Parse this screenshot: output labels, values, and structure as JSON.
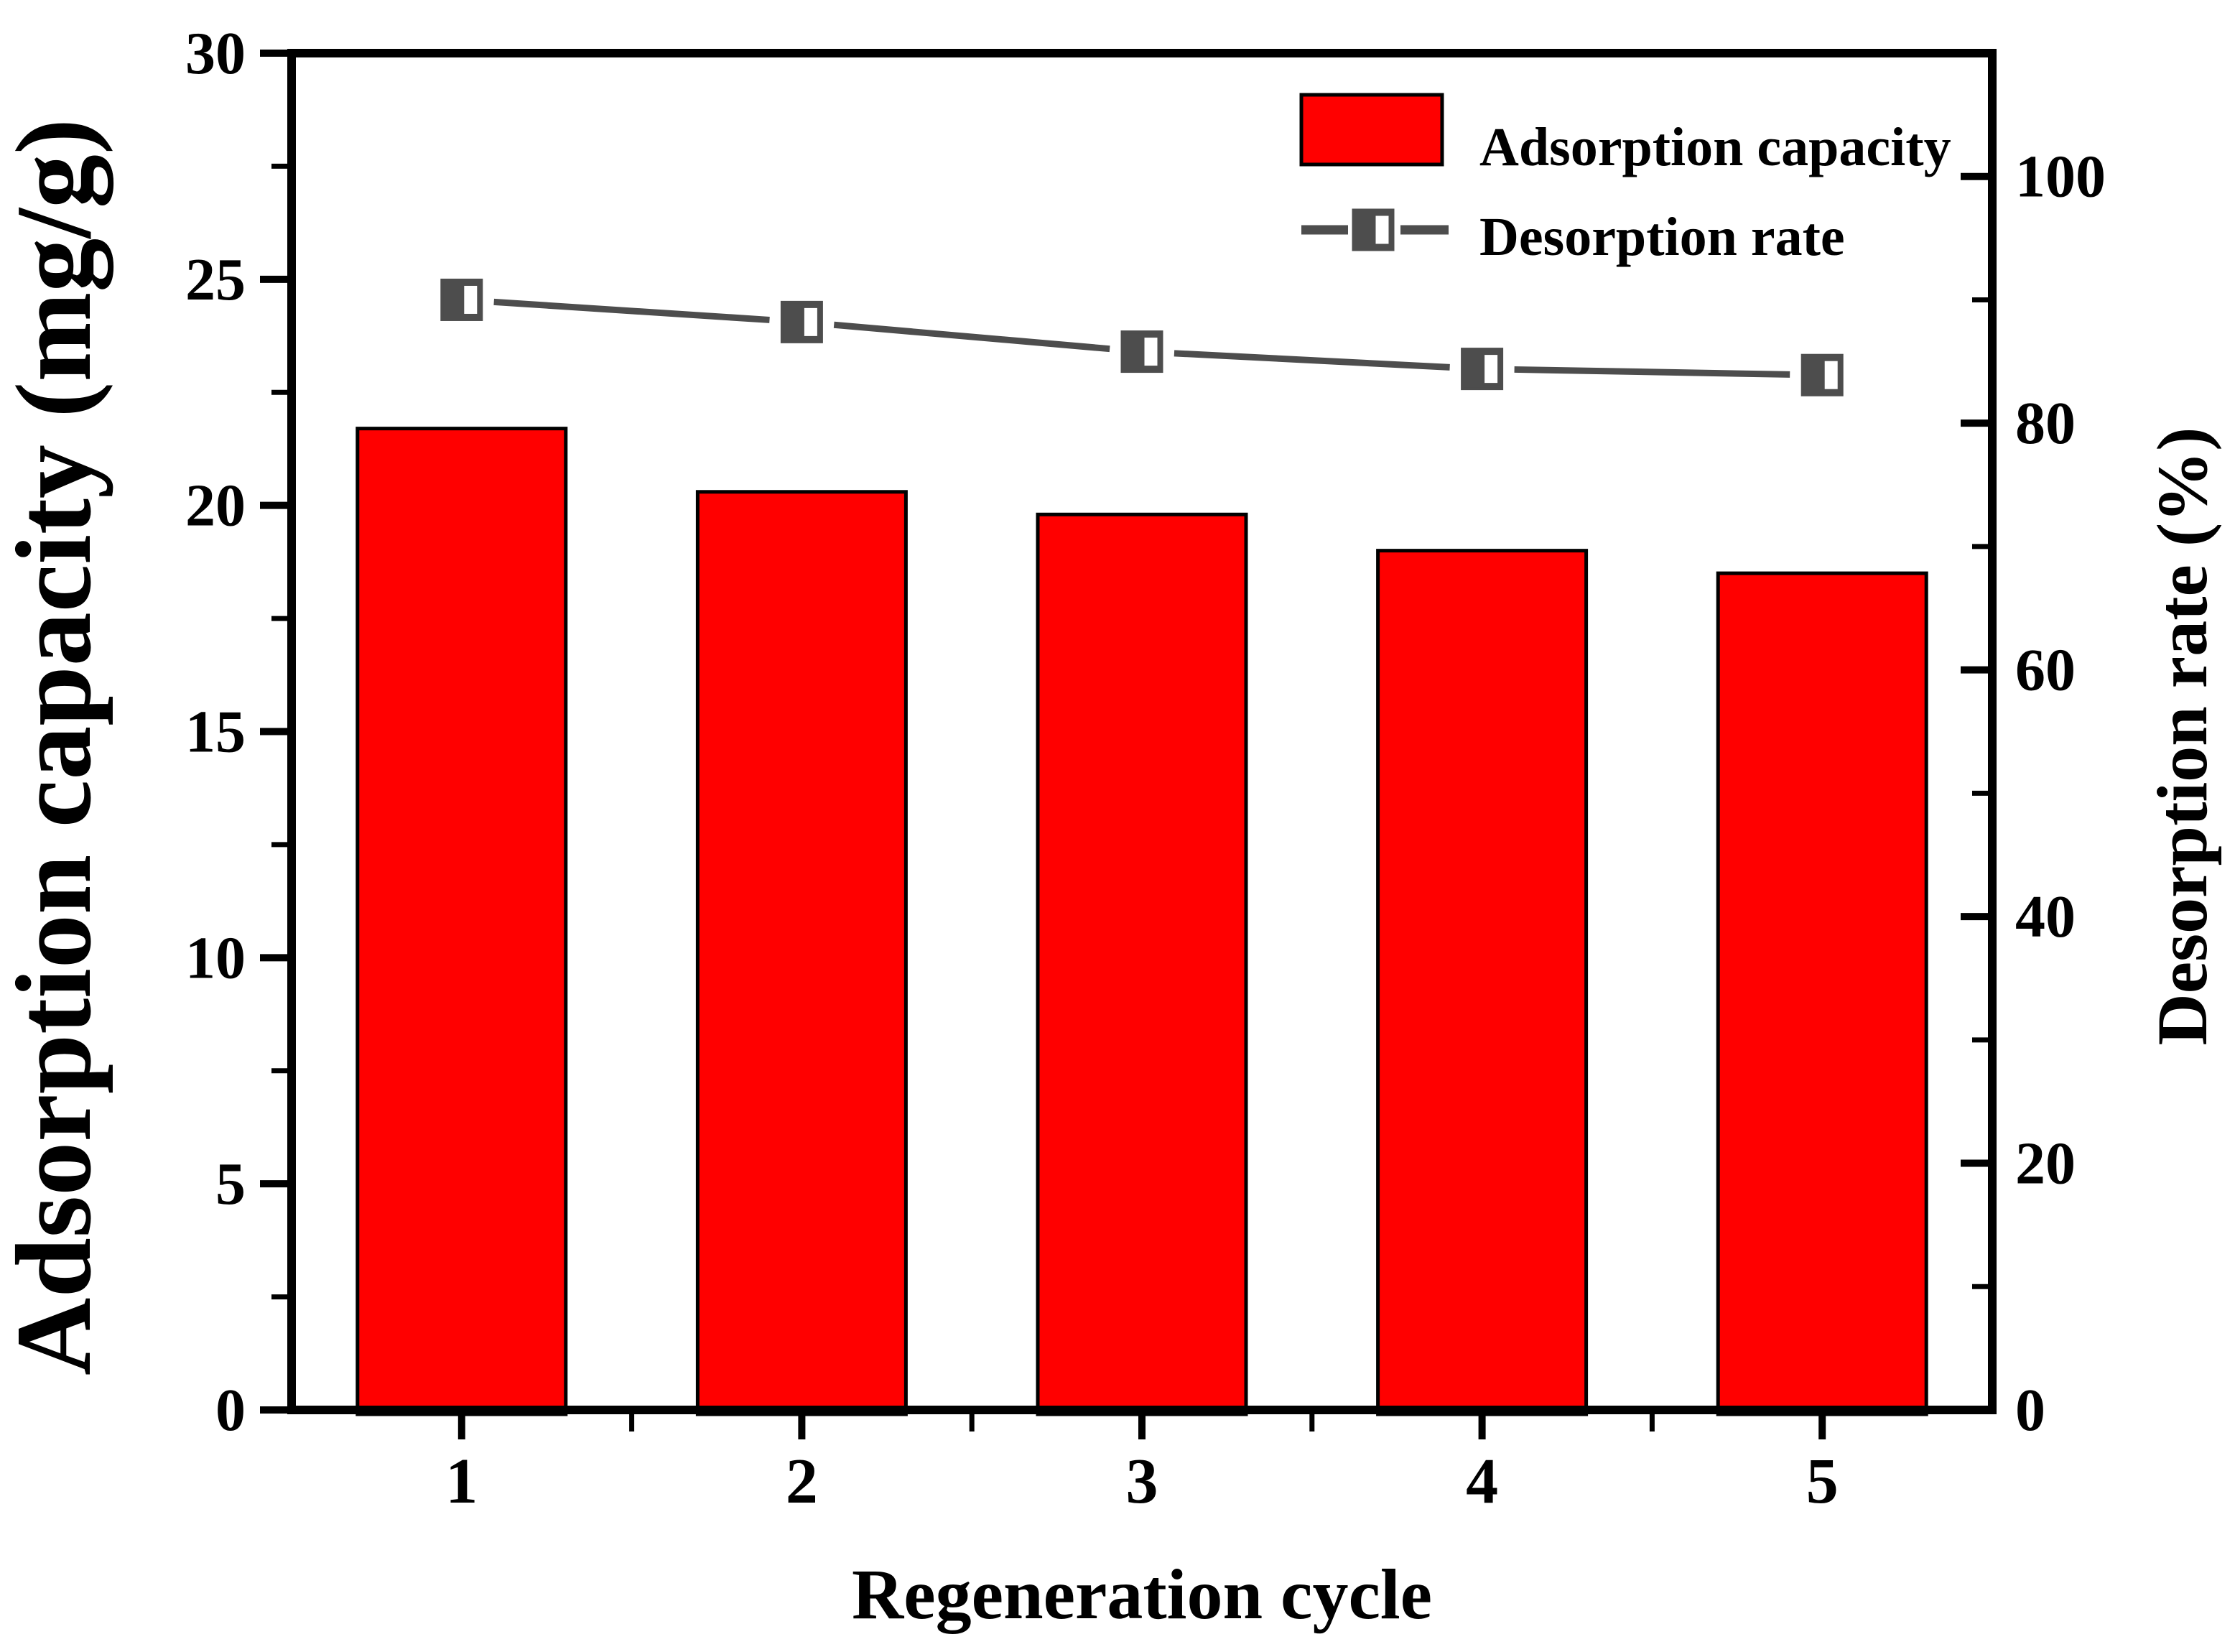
{
  "chart_data": {
    "type": "combo-bar-line",
    "categories": [
      "1",
      "2",
      "3",
      "4",
      "5"
    ],
    "xlabel": "Regeneration cycle",
    "left_axis": {
      "label": "Adsorption capacity (mg/g)",
      "min": 0,
      "max": 30,
      "major_step": 5,
      "minor_step": 2.5,
      "major_tick_labels": [
        "0",
        "5",
        "10",
        "15",
        "20",
        "25",
        "30"
      ],
      "ticks_direction": "out"
    },
    "right_axis": {
      "label": "Desorption rate (%)",
      "min": 0,
      "max": 110,
      "major_step": 20,
      "minor_step": 10,
      "major_tick_labels": [
        "0",
        "20",
        "40",
        "60",
        "80",
        "100"
      ],
      "ticks_direction": "in"
    },
    "series": [
      {
        "name": "Adsorption capacity",
        "type": "bar",
        "axis": "left",
        "color": "#ff0000",
        "border_color": "#000000",
        "values": [
          21.7,
          20.3,
          19.8,
          19.0,
          18.5
        ]
      },
      {
        "name": "Desorption rate",
        "type": "line",
        "axis": "right",
        "color": "#4d4d4d",
        "marker": "half-filled-square",
        "values": [
          90.0,
          88.2,
          85.8,
          84.4,
          83.9
        ]
      }
    ],
    "legend": {
      "position": "top-right-inside",
      "entries": [
        {
          "label": "Adsorption capacity",
          "symbol": "red-rectangle"
        },
        {
          "label": "Desorption rate",
          "symbol": "dashed-line-half-filled-square"
        }
      ]
    },
    "grid": false,
    "background": "#ffffff",
    "text_color": "#000000",
    "frame_color": "#000000"
  }
}
